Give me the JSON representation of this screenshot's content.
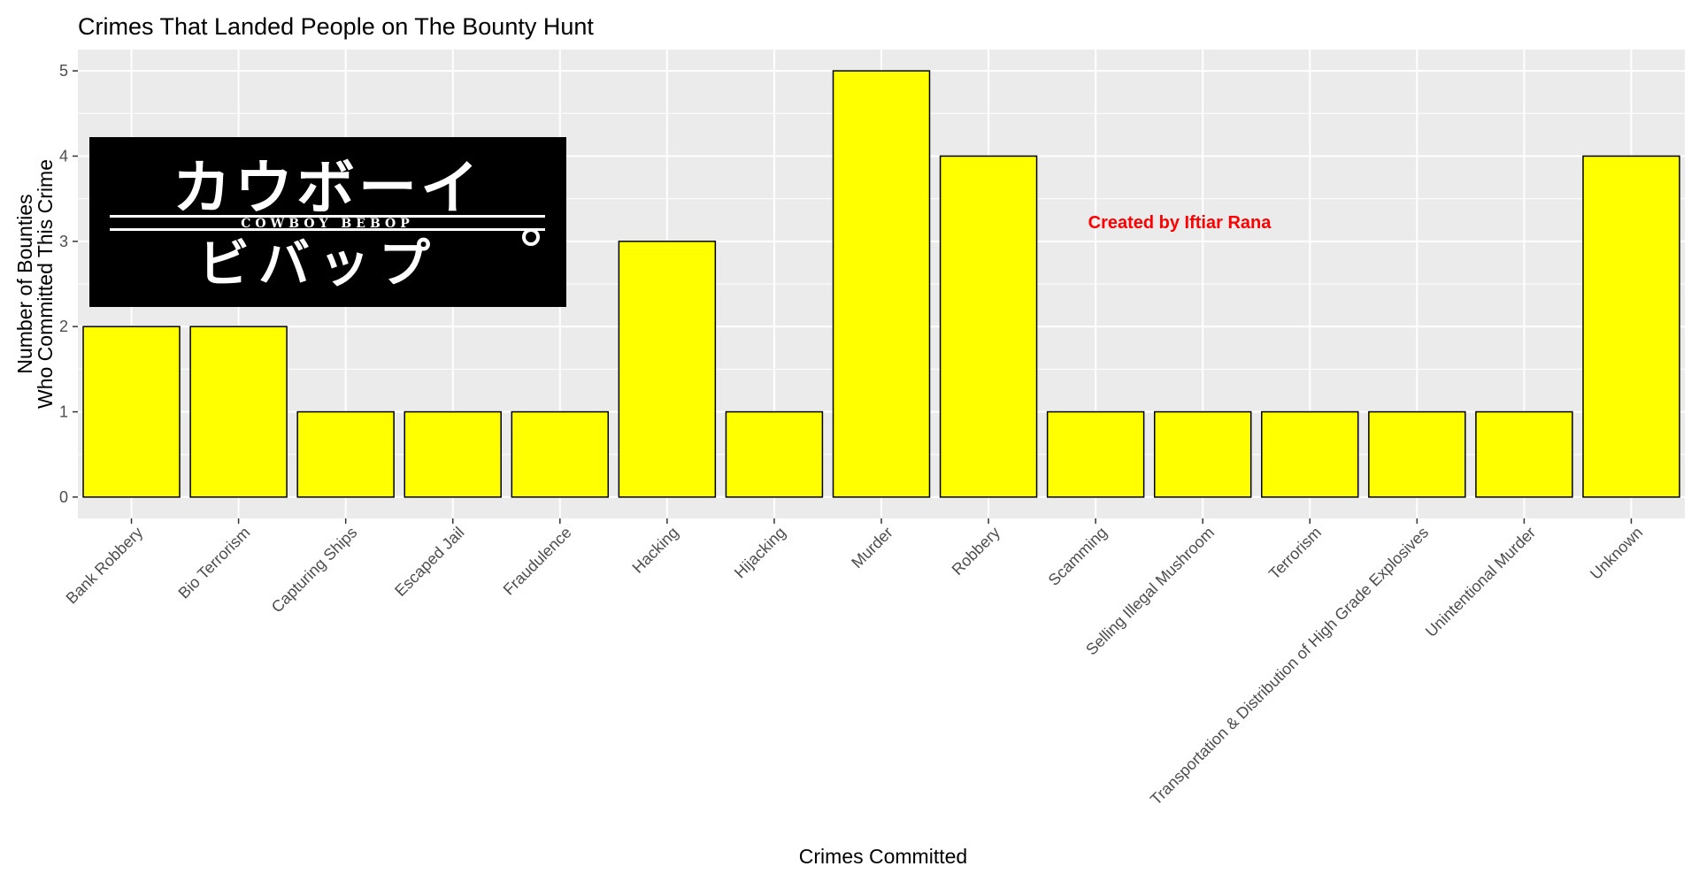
{
  "chart_data": {
    "type": "bar",
    "title": "Crimes That Landed People on The Bounty Hunt",
    "xlabel": "Crimes Committed",
    "ylabel": [
      "Number of Bounties",
      "Who Committed This Crime"
    ],
    "categories": [
      "Bank Robbery",
      "Bio Terrorism",
      "Capturing Ships",
      "Escaped Jail",
      "Fraudulence",
      "Hacking",
      "Hijacking",
      "Murder",
      "Robbery",
      "Scamming",
      "Selling Illegal Mushroom",
      "Terrorism",
      "Transportation & Distribution of High Grade Explosives",
      "Unintentional Murder",
      "Unknown"
    ],
    "values": [
      2,
      2,
      1,
      1,
      1,
      3,
      1,
      5,
      4,
      1,
      1,
      1,
      1,
      1,
      4
    ],
    "ylim": [
      0,
      5
    ],
    "yticks": [
      0,
      1,
      2,
      3,
      4,
      5
    ],
    "grid": true,
    "bar_color": "#ffff00",
    "bar_outline": "#000000",
    "panel_background": "#ebebeb",
    "annotation": "Created by Iftiar Rana",
    "annotation_color": "#ff0000",
    "logo": {
      "line1": "カウボーイ",
      "banner": "COWBOY BEBOP",
      "line2": "ビバップ"
    }
  }
}
